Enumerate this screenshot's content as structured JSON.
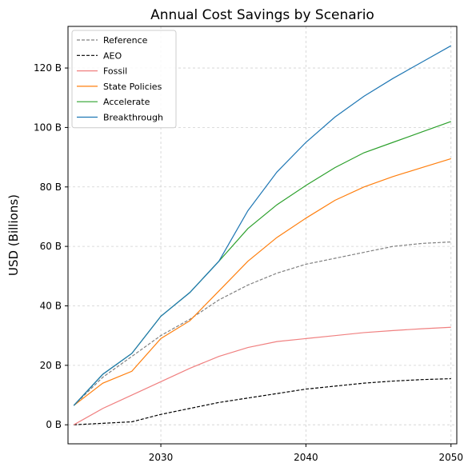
{
  "chart_data": {
    "type": "line",
    "title": "Annual Cost Savings by Scenario",
    "xlabel": "",
    "ylabel": "USD (Billions)",
    "xlim": [
      2023.6,
      2050.4
    ],
    "ylim": [
      -6.4,
      134
    ],
    "x_ticks": [
      2030,
      2040,
      2050
    ],
    "y_ticks": [
      0,
      20,
      40,
      60,
      80,
      100,
      120
    ],
    "y_tick_suffix": " B",
    "grid": true,
    "legend_position": "top-left",
    "x": [
      2024,
      2026,
      2028,
      2030,
      2032,
      2034,
      2036,
      2038,
      2040,
      2042,
      2044,
      2046,
      2048,
      2050
    ],
    "series": [
      {
        "name": "Reference",
        "color": "#808080",
        "dash": "dashed",
        "values": [
          6.5,
          16,
          23,
          30,
          35.5,
          42,
          47,
          51,
          54,
          56,
          58,
          60,
          61,
          61.5
        ]
      },
      {
        "name": "AEO",
        "color": "#000000",
        "dash": "dashed",
        "values": [
          0,
          0.5,
          1,
          3.5,
          5.5,
          7.5,
          9,
          10.5,
          12,
          13,
          14,
          14.7,
          15.2,
          15.5
        ]
      },
      {
        "name": "Fossil",
        "color": "#f08080",
        "dash": "solid",
        "values": [
          0,
          5.5,
          10,
          14.5,
          19,
          23,
          26,
          28,
          29,
          30,
          31,
          31.7,
          32.3,
          32.8
        ]
      },
      {
        "name": "State Policies",
        "color": "#ff7f0e",
        "dash": "solid",
        "values": [
          6.5,
          14,
          18,
          29,
          35,
          45,
          55,
          63,
          69.5,
          75.5,
          80,
          83.5,
          86.5,
          89.5
        ]
      },
      {
        "name": "Accelerate",
        "color": "#2ca02c",
        "dash": "solid",
        "values": [
          6.5,
          17,
          24,
          36.5,
          44.5,
          55,
          66,
          74,
          80.5,
          86.5,
          91.5,
          95,
          98.5,
          102
        ]
      },
      {
        "name": "Breakthrough",
        "color": "#1f77b4",
        "dash": "solid",
        "values": [
          6.5,
          17,
          24,
          36.5,
          44.5,
          55,
          72,
          85,
          95,
          103.5,
          110.5,
          116.5,
          122,
          127.5
        ]
      }
    ]
  }
}
